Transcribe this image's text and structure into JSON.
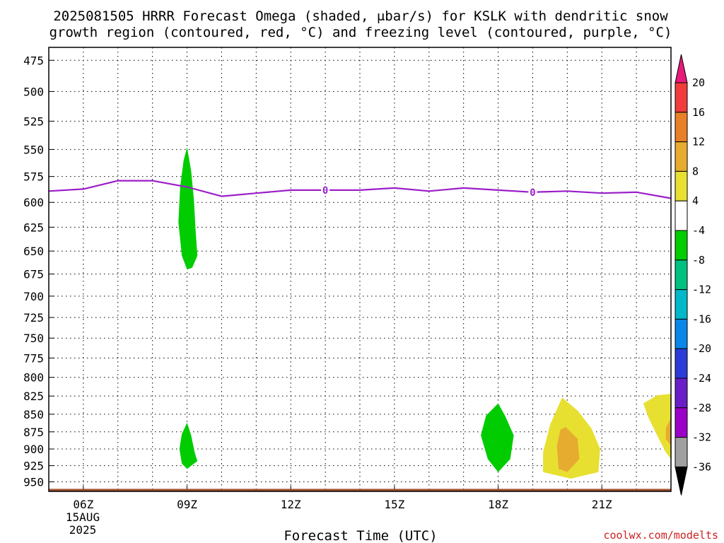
{
  "chart_data": {
    "type": "heatmap",
    "title_lines": [
      "2025081505 HRRR Forecast Omega (shaded, μbar/s) for KSLK with dendritic snow",
      "growth region (contoured, red, °C) and freezing level (contoured, purple, °C)"
    ],
    "xlabel": "Forecast Time (UTC)",
    "credit": "coolwx.com/modelts",
    "date_label": [
      "15AUG",
      "2025"
    ],
    "x_hours": [
      5,
      6,
      7,
      8,
      9,
      10,
      11,
      12,
      13,
      14,
      15,
      16,
      17,
      18,
      19,
      20,
      21,
      22,
      23
    ],
    "x_tick_labels": [
      {
        "hour": 6,
        "label": "06Z"
      },
      {
        "hour": 9,
        "label": "09Z"
      },
      {
        "hour": 12,
        "label": "12Z"
      },
      {
        "hour": 15,
        "label": "15Z"
      },
      {
        "hour": 18,
        "label": "18Z"
      },
      {
        "hour": 21,
        "label": "21Z"
      }
    ],
    "xlim": [
      5,
      23
    ],
    "ylim_hpa": [
      465,
      965
    ],
    "y_scale": "log",
    "y_ticks_hpa": [
      475,
      500,
      525,
      550,
      575,
      600,
      625,
      650,
      675,
      700,
      725,
      750,
      775,
      800,
      825,
      850,
      875,
      900,
      925,
      950
    ],
    "grid": true,
    "freezing_level": {
      "color": "#9b1ec8",
      "contour_label": "0",
      "label_hours": [
        13,
        19
      ],
      "points": [
        [
          5,
          589
        ],
        [
          6,
          587
        ],
        [
          7,
          579
        ],
        [
          8,
          579
        ],
        [
          9,
          585
        ],
        [
          10,
          594
        ],
        [
          11,
          591
        ],
        [
          12,
          588
        ],
        [
          13,
          588
        ],
        [
          14,
          588
        ],
        [
          15,
          586
        ],
        [
          16,
          589
        ],
        [
          17,
          586
        ],
        [
          18,
          588
        ],
        [
          19,
          590
        ],
        [
          20,
          589
        ],
        [
          21,
          591
        ],
        [
          22,
          590
        ],
        [
          23,
          596
        ]
      ]
    },
    "omega_regions": [
      {
        "name": "",
        "level": -4,
        "color": "#00cc00",
        "points": [
          [
            9.0,
            548
          ],
          [
            9.12,
            570
          ],
          [
            9.2,
            598
          ],
          [
            9.25,
            630
          ],
          [
            9.3,
            655
          ],
          [
            9.15,
            668
          ],
          [
            9.0,
            670
          ],
          [
            8.85,
            655
          ],
          [
            8.75,
            620
          ],
          [
            8.8,
            585
          ],
          [
            8.9,
            560
          ]
        ]
      },
      {
        "name": "",
        "level": -4,
        "color": "#00cc00",
        "points": [
          [
            9.0,
            862
          ],
          [
            9.12,
            880
          ],
          [
            9.22,
            905
          ],
          [
            9.3,
            918
          ],
          [
            9.1,
            926
          ],
          [
            9.0,
            930
          ],
          [
            8.85,
            922
          ],
          [
            8.78,
            900
          ],
          [
            8.85,
            878
          ]
        ]
      },
      {
        "name": "",
        "level": -4,
        "color": "#00cc00",
        "points": [
          [
            18.0,
            835
          ],
          [
            18.2,
            852
          ],
          [
            18.45,
            880
          ],
          [
            18.35,
            915
          ],
          [
            18.0,
            935
          ],
          [
            17.7,
            915
          ],
          [
            17.5,
            880
          ],
          [
            17.65,
            852
          ]
        ]
      },
      {
        "name": "",
        "level": 4,
        "color": "#e8e030",
        "points": [
          [
            19.85,
            827
          ],
          [
            20.3,
            845
          ],
          [
            20.7,
            870
          ],
          [
            20.95,
            900
          ],
          [
            20.9,
            935
          ],
          [
            20.1,
            945
          ],
          [
            19.3,
            935
          ],
          [
            19.3,
            905
          ],
          [
            19.5,
            865
          ]
        ]
      },
      {
        "name": "",
        "level": 8,
        "color": "#e6ac30",
        "points": [
          [
            19.95,
            868
          ],
          [
            20.3,
            885
          ],
          [
            20.35,
            915
          ],
          [
            20.0,
            935
          ],
          [
            19.75,
            930
          ],
          [
            19.7,
            895
          ],
          [
            19.8,
            872
          ]
        ]
      },
      {
        "name": "",
        "level": 4,
        "color": "#e8e030",
        "points": [
          [
            23,
            822
          ],
          [
            22.6,
            824
          ],
          [
            22.2,
            835
          ],
          [
            22.35,
            855
          ],
          [
            22.6,
            880
          ],
          [
            22.85,
            905
          ],
          [
            23,
            915
          ]
        ]
      },
      {
        "name": "",
        "level": 8,
        "color": "#e6ac30",
        "points": [
          [
            23,
            855
          ],
          [
            22.85,
            870
          ],
          [
            22.85,
            885
          ],
          [
            23,
            895
          ]
        ]
      }
    ],
    "terrain": {
      "color": "#a0522d",
      "top_hpa": 961
    },
    "colorbar": {
      "colors": [
        "#000000",
        "#a0a0a0",
        "#9b00c8",
        "#6a1ec8",
        "#2c3cd8",
        "#0a86e8",
        "#00b8c8",
        "#00c080",
        "#00cc00",
        "#ffffff",
        "#e8e030",
        "#e6ac30",
        "#e8802a",
        "#f03c3c",
        "#e81a7a"
      ],
      "labels": [
        "-36",
        "-32",
        "-28",
        "-24",
        "-20",
        "-16",
        "-12",
        "-8",
        "-4",
        "4",
        "8",
        "12",
        "16",
        "20"
      ]
    }
  }
}
